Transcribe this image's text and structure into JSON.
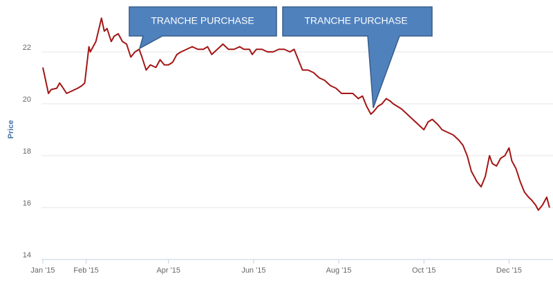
{
  "chart_data": {
    "type": "line",
    "y_label": "Price",
    "annotations": [
      {
        "text": "TRANCHE PURCHASE"
      },
      {
        "text": "TRANCHE PURCHASE"
      }
    ],
    "xlim": [
      0,
      365
    ],
    "xticks": [
      {
        "value": 0,
        "label": "Jan '15"
      },
      {
        "value": 31,
        "label": "Feb '15"
      },
      {
        "value": 90,
        "label": "Apr '15"
      },
      {
        "value": 151,
        "label": "Jun '15"
      },
      {
        "value": 212,
        "label": "Aug '15"
      },
      {
        "value": 273,
        "label": "Oct '15"
      },
      {
        "value": 334,
        "label": "Dec '15"
      }
    ],
    "ylim": [
      14,
      24
    ],
    "yticks": [
      14,
      16,
      18,
      20,
      22
    ],
    "grid": true,
    "x": [
      0,
      2,
      4,
      6,
      10,
      12,
      14,
      17,
      21,
      25,
      28,
      30,
      33,
      34,
      38,
      42,
      44,
      46,
      49,
      51,
      54,
      57,
      60,
      63,
      66,
      69,
      71,
      74,
      77,
      81,
      84,
      87,
      90,
      93,
      96,
      99,
      103,
      107,
      111,
      115,
      118,
      121,
      125,
      129,
      133,
      137,
      141,
      144,
      148,
      150,
      153,
      157,
      161,
      165,
      169,
      173,
      177,
      180,
      183,
      186,
      190,
      194,
      198,
      202,
      206,
      210,
      214,
      218,
      222,
      226,
      229,
      232,
      235,
      237,
      240,
      243,
      246,
      249,
      251,
      254,
      257,
      261,
      265,
      269,
      273,
      276,
      279,
      283,
      286,
      290,
      294,
      298,
      301,
      304,
      307,
      311,
      314,
      317,
      320,
      322,
      325,
      328,
      331,
      334,
      336,
      339,
      342,
      345,
      348,
      350,
      353,
      355,
      358,
      361,
      363
    ],
    "series": [
      {
        "name": "Price",
        "color": "#a31515",
        "values": [
          21.4,
          20.9,
          20.4,
          20.55,
          20.6,
          20.8,
          20.65,
          20.4,
          20.5,
          20.6,
          20.7,
          20.8,
          22.2,
          22.0,
          22.4,
          23.3,
          22.8,
          22.9,
          22.4,
          22.6,
          22.7,
          22.4,
          22.3,
          21.8,
          22.0,
          22.1,
          21.8,
          21.3,
          21.5,
          21.4,
          21.7,
          21.5,
          21.5,
          21.6,
          21.9,
          22.0,
          22.1,
          22.2,
          22.1,
          22.1,
          22.2,
          21.9,
          22.1,
          22.3,
          22.1,
          22.1,
          22.2,
          22.1,
          22.1,
          21.9,
          22.1,
          22.1,
          22.0,
          22.0,
          22.1,
          22.1,
          22.0,
          22.1,
          21.7,
          21.3,
          21.3,
          21.2,
          21.0,
          20.9,
          20.7,
          20.6,
          20.4,
          20.4,
          20.4,
          20.2,
          20.3,
          19.9,
          19.6,
          19.7,
          19.9,
          20.0,
          20.2,
          20.1,
          20.0,
          19.9,
          19.8,
          19.6,
          19.4,
          19.2,
          19.0,
          19.3,
          19.4,
          19.2,
          19.0,
          18.9,
          18.8,
          18.6,
          18.4,
          18.0,
          17.4,
          17.0,
          16.8,
          17.2,
          18.0,
          17.7,
          17.6,
          17.9,
          18.0,
          18.3,
          17.8,
          17.5,
          17.0,
          16.6,
          16.4,
          16.3,
          16.1,
          15.9,
          16.1,
          16.4,
          16.0
        ]
      }
    ]
  }
}
